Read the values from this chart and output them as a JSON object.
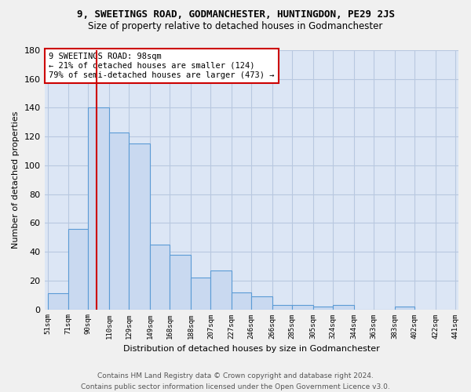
{
  "title": "9, SWEETINGS ROAD, GODMANCHESTER, HUNTINGDON, PE29 2JS",
  "subtitle": "Size of property relative to detached houses in Godmanchester",
  "xlabel": "Distribution of detached houses by size in Godmanchester",
  "ylabel": "Number of detached properties",
  "bar_values": [
    11,
    56,
    140,
    123,
    115,
    45,
    38,
    22,
    27,
    12,
    9,
    3,
    3,
    2,
    3,
    0,
    0,
    2
  ],
  "bin_left_edges": [
    51,
    71,
    90,
    110,
    129,
    149,
    168,
    188,
    207,
    227,
    246,
    266,
    285,
    305,
    324,
    344,
    363,
    383
  ],
  "bin_right_edges": [
    71,
    90,
    110,
    129,
    149,
    168,
    188,
    207,
    227,
    246,
    266,
    285,
    305,
    324,
    344,
    363,
    383,
    402
  ],
  "tick_positions": [
    51,
    71,
    90,
    110,
    129,
    149,
    168,
    188,
    207,
    227,
    246,
    266,
    285,
    305,
    324,
    344,
    363,
    383,
    402,
    422,
    441
  ],
  "bin_labels": [
    "51sqm",
    "71sqm",
    "90sqm",
    "110sqm",
    "129sqm",
    "149sqm",
    "168sqm",
    "188sqm",
    "207sqm",
    "227sqm",
    "246sqm",
    "266sqm",
    "285sqm",
    "305sqm",
    "324sqm",
    "344sqm",
    "363sqm",
    "383sqm",
    "402sqm",
    "422sqm",
    "441sqm"
  ],
  "bar_color": "#c9d9f0",
  "bar_edge_color": "#5b9bd5",
  "grid_color": "#b8c8e0",
  "background_color": "#dce6f5",
  "fig_background_color": "#f0f0f0",
  "vline_x": 98,
  "vline_color": "#cc0000",
  "annotation_text": "9 SWEETINGS ROAD: 98sqm\n← 21% of detached houses are smaller (124)\n79% of semi-detached houses are larger (473) →",
  "annotation_box_facecolor": "#ffffff",
  "annotation_box_edgecolor": "#cc0000",
  "ylim": [
    0,
    180
  ],
  "yticks": [
    0,
    20,
    40,
    60,
    80,
    100,
    120,
    140,
    160,
    180
  ],
  "footer_line1": "Contains HM Land Registry data © Crown copyright and database right 2024.",
  "footer_line2": "Contains public sector information licensed under the Open Government Licence v3.0."
}
